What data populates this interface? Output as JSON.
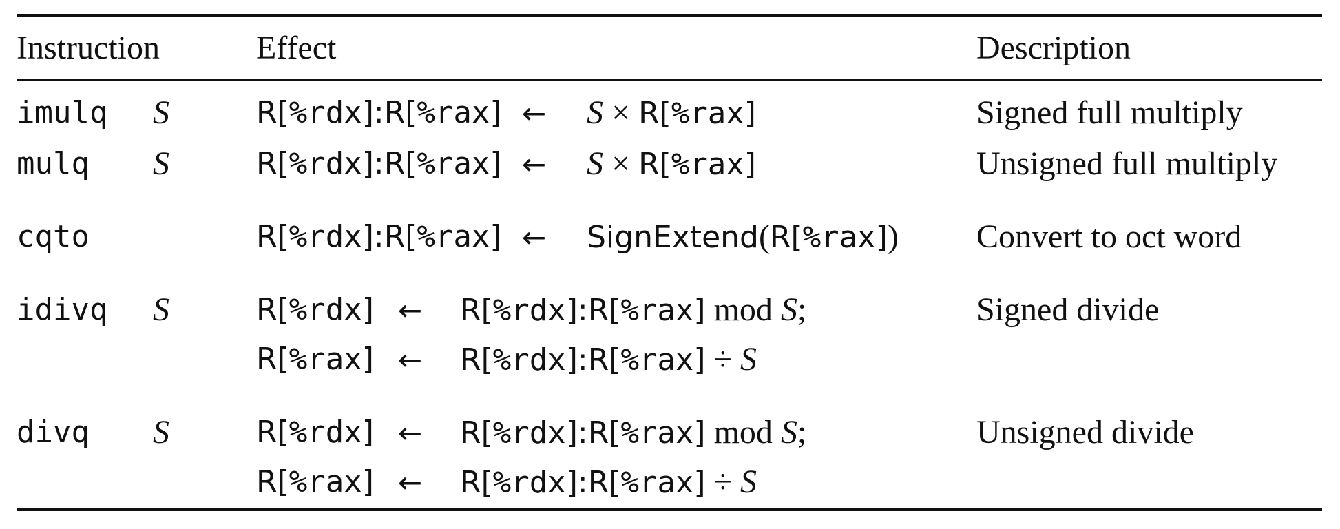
{
  "headers": {
    "instruction": "Instruction",
    "effect": "Effect",
    "description": "Description"
  },
  "rows": [
    {
      "op": "imulq",
      "operand": "S",
      "lines": [
        {
          "dest": "R[%rdx]:R[%rax]",
          "arrow": "←",
          "expr": [
            {
              "t": "S",
              "k": "ital"
            },
            {
              "t": " × ",
              "k": "serif"
            },
            {
              "t": "R[%rax]",
              "k": "reg"
            }
          ]
        }
      ],
      "description": "Signed full multiply"
    },
    {
      "op": "mulq",
      "operand": "S",
      "lines": [
        {
          "dest": "R[%rdx]:R[%rax]",
          "arrow": "←",
          "expr": [
            {
              "t": "S",
              "k": "ital"
            },
            {
              "t": " × ",
              "k": "serif"
            },
            {
              "t": "R[%rax]",
              "k": "reg"
            }
          ]
        }
      ],
      "description": "Unsigned full multiply"
    },
    {
      "op": "cqto",
      "operand": "",
      "lines": [
        {
          "dest": "R[%rdx]:R[%rax]",
          "arrow": "←",
          "expr": [
            {
              "t": "SignExtend",
              "k": "sans"
            },
            {
              "t": "(",
              "k": "serif"
            },
            {
              "t": "R[%rax]",
              "k": "reg"
            },
            {
              "t": ")",
              "k": "serif"
            }
          ]
        }
      ],
      "description": "Convert to oct word"
    },
    {
      "op": "idivq",
      "operand": "S",
      "lines": [
        {
          "dest": "R[%rdx]",
          "arrow": "←",
          "expr": [
            {
              "t": "R[%rdx]:R[%rax]",
              "k": "reg"
            },
            {
              "t": " mod ",
              "k": "serif"
            },
            {
              "t": "S",
              "k": "ital"
            },
            {
              "t": ";",
              "k": "serif"
            }
          ]
        },
        {
          "dest": "R[%rax]",
          "arrow": "←",
          "expr": [
            {
              "t": "R[%rdx]:R[%rax]",
              "k": "reg"
            },
            {
              "t": " ÷ ",
              "k": "serif"
            },
            {
              "t": "S",
              "k": "ital"
            }
          ]
        }
      ],
      "description": "Signed divide"
    },
    {
      "op": "divq",
      "operand": "S",
      "lines": [
        {
          "dest": "R[%rdx]",
          "arrow": "←",
          "expr": [
            {
              "t": "R[%rdx]:R[%rax]",
              "k": "reg"
            },
            {
              "t": " mod ",
              "k": "serif"
            },
            {
              "t": "S",
              "k": "ital"
            },
            {
              "t": ";",
              "k": "serif"
            }
          ]
        },
        {
          "dest": "R[%rax]",
          "arrow": "←",
          "expr": [
            {
              "t": "R[%rdx]:R[%rax]",
              "k": "reg"
            },
            {
              "t": " ÷ ",
              "k": "serif"
            },
            {
              "t": "S",
              "k": "ital"
            }
          ]
        }
      ],
      "description": "Unsigned divide"
    }
  ]
}
